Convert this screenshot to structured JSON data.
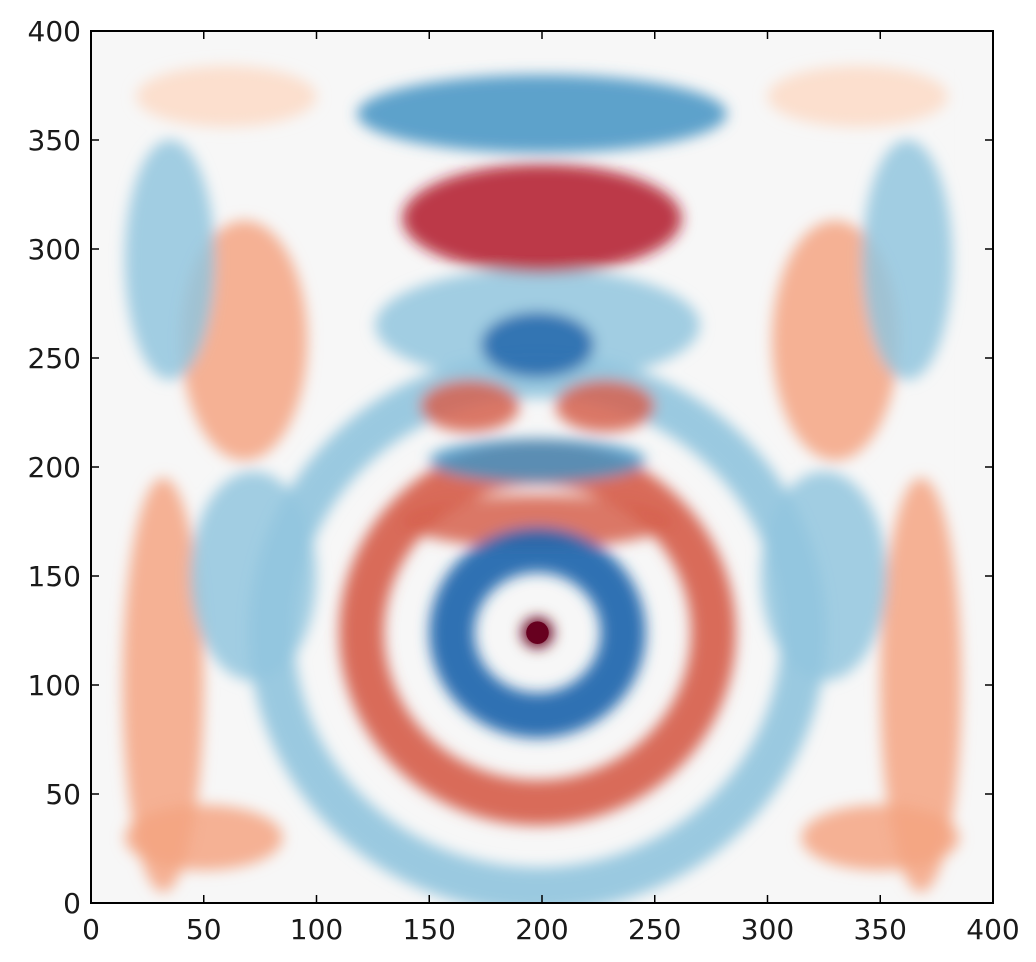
{
  "chart_data": {
    "type": "heatmap",
    "title": "",
    "xlabel": "",
    "ylabel": "",
    "xlim": [
      0,
      400
    ],
    "ylim": [
      0,
      400
    ],
    "x_ticks": [
      "0",
      "50",
      "100",
      "150",
      "200",
      "250",
      "300",
      "350",
      "400"
    ],
    "y_ticks": [
      "0",
      "50",
      "100",
      "150",
      "200",
      "250",
      "300",
      "350",
      "400"
    ],
    "grid": false,
    "colormap": "RdBu_r (red = positive, blue = negative, white = zero)",
    "colors": {
      "strong_positive": "#67001f",
      "positive": "#d6604d",
      "weak_positive": "#f4a582",
      "zero": "#f7f7f7",
      "weak_negative": "#92c5de",
      "negative": "#4393c3",
      "strong_negative": "#2166ac"
    },
    "field_extent": {
      "x": [
        17,
        383
      ],
      "y": [
        17,
        383
      ]
    },
    "source_point": {
      "x": 198,
      "y": 124
    },
    "features": [
      {
        "kind": "peak",
        "sign": "positive",
        "x": 198,
        "y": 124,
        "rx": 7,
        "ry": 7,
        "intensity": 1.0
      },
      {
        "kind": "ring",
        "sign": "negative",
        "x": 198,
        "y": 124,
        "radius": 38,
        "x_range": [
          150,
          250
        ],
        "y_range": [
          50,
          150
        ],
        "intensity": 0.82
      },
      {
        "kind": "ring",
        "sign": "positive",
        "x": 198,
        "y": 124,
        "radius": 78,
        "x_range": [
          95,
          300
        ],
        "y_range": [
          20,
          185
        ],
        "intensity": 0.55
      },
      {
        "kind": "ring",
        "sign": "negative",
        "x": 198,
        "y": 124,
        "radius": 118,
        "x_range": [
          50,
          345
        ],
        "y_range": [
          17,
          215
        ],
        "intensity": 0.28
      },
      {
        "kind": "band",
        "sign": "positive",
        "x": 198,
        "y": 175,
        "rx": 60,
        "ry": 12,
        "intensity": 0.4
      },
      {
        "kind": "band",
        "sign": "negative",
        "x": 198,
        "y": 203,
        "rx": 48,
        "ry": 10,
        "intensity": 0.45
      },
      {
        "kind": "blob",
        "sign": "positive",
        "x": 168,
        "y": 228,
        "rx": 22,
        "ry": 12,
        "intensity": 0.6
      },
      {
        "kind": "blob",
        "sign": "positive",
        "x": 228,
        "y": 228,
        "rx": 22,
        "ry": 12,
        "intensity": 0.6
      },
      {
        "kind": "blob",
        "sign": "negative",
        "x": 198,
        "y": 256,
        "rx": 25,
        "ry": 15,
        "intensity": 0.65
      },
      {
        "kind": "band",
        "sign": "negative",
        "x": 198,
        "y": 265,
        "rx": 72,
        "ry": 26,
        "intensity": 0.28
      },
      {
        "kind": "blob",
        "sign": "positive",
        "x": 200,
        "y": 314,
        "rx": 62,
        "ry": 25,
        "intensity": 0.78
      },
      {
        "kind": "blob",
        "sign": "negative",
        "x": 200,
        "y": 362,
        "rx": 82,
        "ry": 18,
        "intensity": 0.6
      },
      {
        "kind": "blob",
        "sign": "positive",
        "x": 68,
        "y": 258,
        "rx": 28,
        "ry": 55,
        "intensity": 0.22
      },
      {
        "kind": "blob",
        "sign": "positive",
        "x": 330,
        "y": 258,
        "rx": 28,
        "ry": 55,
        "intensity": 0.22
      },
      {
        "kind": "blob",
        "sign": "negative",
        "x": 35,
        "y": 295,
        "rx": 20,
        "ry": 55,
        "intensity": 0.22
      },
      {
        "kind": "blob",
        "sign": "negative",
        "x": 362,
        "y": 295,
        "rx": 20,
        "ry": 55,
        "intensity": 0.22
      },
      {
        "kind": "blob",
        "sign": "negative",
        "x": 72,
        "y": 150,
        "rx": 28,
        "ry": 48,
        "intensity": 0.25
      },
      {
        "kind": "blob",
        "sign": "negative",
        "x": 325,
        "y": 150,
        "rx": 28,
        "ry": 48,
        "intensity": 0.25
      },
      {
        "kind": "blob",
        "sign": "positive",
        "x": 32,
        "y": 100,
        "rx": 18,
        "ry": 95,
        "intensity": 0.2
      },
      {
        "kind": "blob",
        "sign": "positive",
        "x": 368,
        "y": 100,
        "rx": 18,
        "ry": 95,
        "intensity": 0.2
      },
      {
        "kind": "blob",
        "sign": "positive",
        "x": 50,
        "y": 30,
        "rx": 35,
        "ry": 15,
        "intensity": 0.3
      },
      {
        "kind": "blob",
        "sign": "positive",
        "x": 350,
        "y": 30,
        "rx": 35,
        "ry": 15,
        "intensity": 0.3
      },
      {
        "kind": "blob",
        "sign": "positive",
        "x": 60,
        "y": 370,
        "rx": 40,
        "ry": 14,
        "intensity": 0.08
      },
      {
        "kind": "blob",
        "sign": "positive",
        "x": 340,
        "y": 370,
        "rx": 40,
        "ry": 14,
        "intensity": 0.08
      }
    ]
  }
}
